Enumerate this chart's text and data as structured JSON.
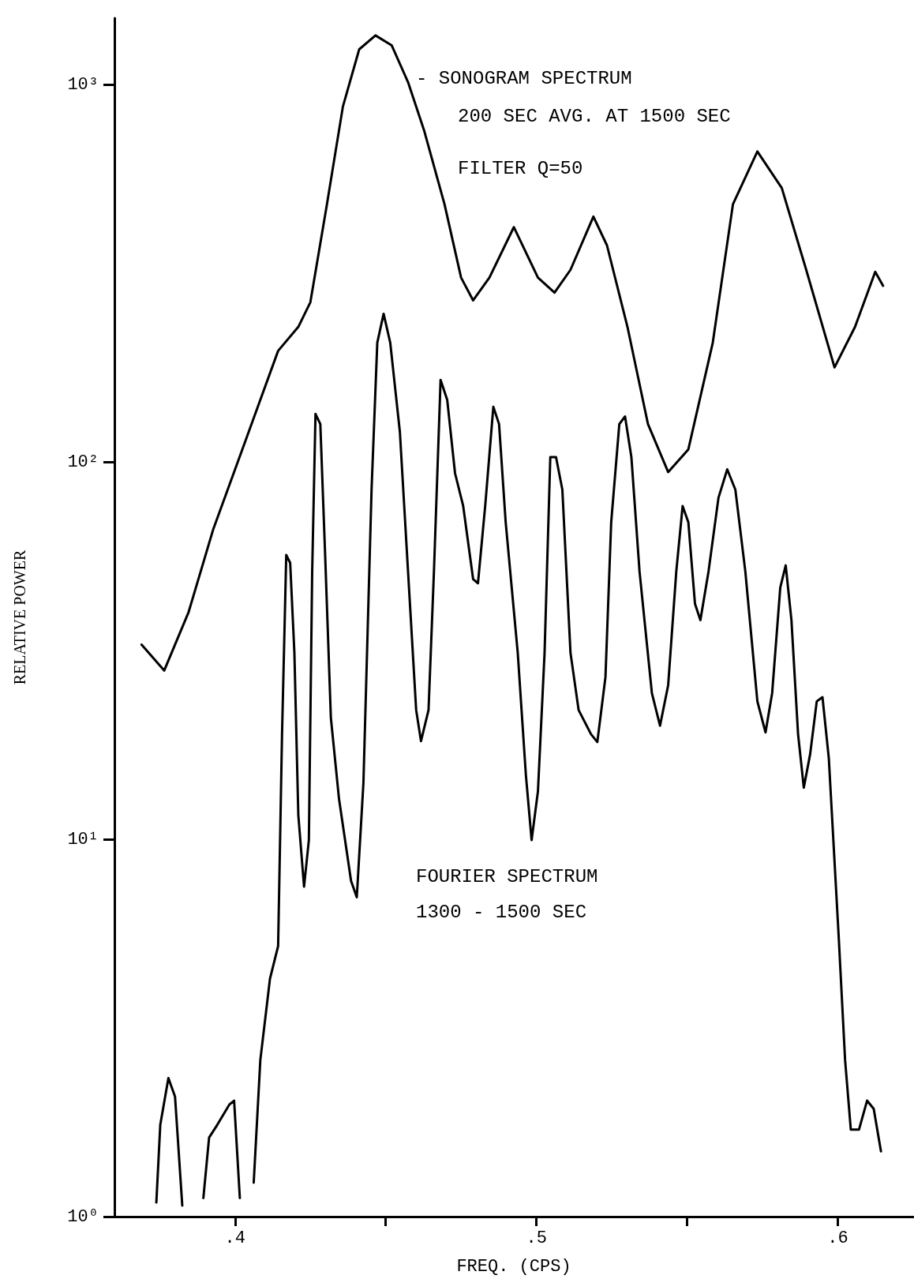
{
  "chart_data": {
    "type": "line",
    "xlabel": "FREQ. (CPS)",
    "ylabel": "RELATIVE POWER",
    "xlim": [
      0.36,
      0.625
    ],
    "xticks": [
      {
        "value": 0.4,
        "label": ".4"
      },
      {
        "value": 0.45,
        "label": null
      },
      {
        "value": 0.5,
        "label": ".5"
      },
      {
        "value": 0.55,
        "label": null
      },
      {
        "value": 0.6,
        "label": ".6"
      }
    ],
    "ylim": [
      1,
      1500
    ],
    "yticks": [
      {
        "value": 1,
        "label": "10⁰"
      },
      {
        "value": 10,
        "label": "10¹"
      },
      {
        "value": 100,
        "label": "10²"
      },
      {
        "value": 1000,
        "label": "10³"
      }
    ],
    "log": "y",
    "grid": false,
    "marker": "none",
    "line_style": "solid",
    "series": [
      {
        "color": "#000000",
        "x": [
          0.369,
          0.3765,
          0.3846,
          0.3927,
          0.4035,
          0.4143,
          0.421,
          0.425,
          0.4305,
          0.4358,
          0.4412,
          0.4466,
          0.452,
          0.4574,
          0.4628,
          0.4695,
          0.475,
          0.479,
          0.4844,
          0.4925,
          0.5005,
          0.506,
          0.5113,
          0.5189,
          0.5234,
          0.5302,
          0.537,
          0.5437,
          0.5504,
          0.5585,
          0.5652,
          0.5733,
          0.5814,
          0.5895,
          0.5989,
          0.6057,
          0.6124,
          0.615
        ],
        "values": [
          32.8,
          28,
          40,
          66,
          114,
          197,
          228,
          265,
          482,
          875,
          1240,
          1350,
          1270,
          1015,
          753,
          482,
          308,
          268,
          308,
          419,
          308,
          281,
          323,
          447,
          375,
          228,
          126,
          94,
          108,
          207,
          482,
          665,
          532,
          323,
          178,
          228,
          319,
          293
        ]
      },
      {
        "color": "#000000",
        "x": [
          0.3739,
          0.3752,
          0.3779,
          0.3801,
          0.3825,
          0.386,
          0.3895,
          0.3914,
          0.3941,
          0.3981,
          0.3997,
          0.4016,
          0.404,
          0.4062,
          0.4084,
          0.4116,
          0.4143,
          0.4156,
          0.417,
          0.4183,
          0.4197,
          0.421,
          0.4229,
          0.4245,
          0.4256,
          0.4267,
          0.4283,
          0.4299,
          0.4318,
          0.4345,
          0.4385,
          0.4404,
          0.4426,
          0.4453,
          0.4472,
          0.4493,
          0.4515,
          0.4547,
          0.4574,
          0.4601,
          0.4617,
          0.4642,
          0.466,
          0.4682,
          0.4704,
          0.473,
          0.4757,
          0.479,
          0.4806,
          0.483,
          0.4857,
          0.4876,
          0.4898,
          0.4938,
          0.4965,
          0.4984,
          0.5005,
          0.5027,
          0.5046,
          0.5065,
          0.5086,
          0.5113,
          0.514,
          0.5181,
          0.5202,
          0.5229,
          0.5248,
          0.5275,
          0.5294,
          0.5315,
          0.5342,
          0.5383,
          0.541,
          0.5437,
          0.5464,
          0.5485,
          0.5504,
          0.5526,
          0.5544,
          0.5571,
          0.5604,
          0.5633,
          0.566,
          0.5693,
          0.5733,
          0.576,
          0.5782,
          0.5809,
          0.5827,
          0.5846,
          0.5868,
          0.5887,
          0.5908,
          0.593,
          0.5949,
          0.597,
          0.6003,
          0.6024,
          0.6043,
          0.607,
          0.6097,
          0.6119,
          0.6143
        ],
        "values": [
          1.09,
          1.75,
          2.33,
          2.08,
          1.07,
          null,
          1.12,
          1.62,
          1.75,
          1.98,
          2.03,
          1.12,
          null,
          1.23,
          2.6,
          4.27,
          5.21,
          19,
          56.7,
          54,
          31.2,
          11.6,
          7.49,
          9.95,
          51.3,
          134,
          126,
          56.7,
          21,
          12.8,
          7.76,
          7.02,
          14.1,
          84.4,
          207,
          247,
          207,
          120,
          51.3,
          22,
          18.2,
          22,
          51.3,
          165,
          146,
          93.3,
          76.4,
          48.9,
          47.7,
          76.4,
          140,
          126,
          69.2,
          31.2,
          14.8,
          9.95,
          13.4,
          31.2,
          103,
          103,
          84.4,
          31.2,
          22,
          19,
          18.1,
          26.9,
          69.2,
          126,
          132,
          103,
          51.3,
          24.4,
          20,
          25.6,
          51.3,
          76.4,
          69.2,
          42.1,
          38.1,
          51.3,
          80.4,
          95.6,
          84.4,
          51.3,
          23.2,
          19.2,
          24.4,
          46.5,
          53.2,
          38.1,
          19,
          13.7,
          16.8,
          23.2,
          23.8,
          16.4,
          5.48,
          2.6,
          1.7,
          1.7,
          2.03,
          1.93,
          1.49
        ]
      }
    ],
    "annotations": [
      "- SONOGRAM SPECTRUM",
      "200 SEC AVG. AT 1500 SEC",
      "FILTER Q=50",
      "FOURIER SPECTRUM",
      "1300 - 1500 SEC"
    ]
  }
}
